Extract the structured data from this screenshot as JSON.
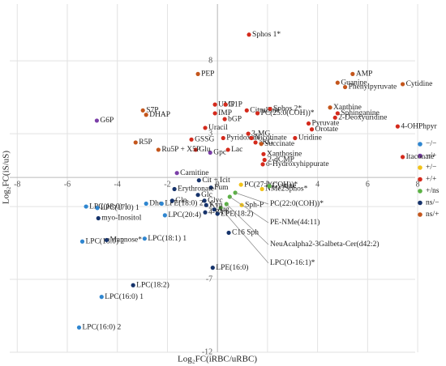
{
  "chart_data": {
    "type": "scatter",
    "xlabel": "Log₂FC(iRBC/uRBC)",
    "ylabel": "Log₂FC(iS/uS)",
    "xlim": [
      -8.3,
      7.9
    ],
    "ylim": [
      -12,
      11.9
    ],
    "xticks": [
      -8,
      -6,
      -4,
      -2,
      0,
      2,
      4,
      6,
      8
    ],
    "yticks": [
      8,
      3,
      -2,
      -7,
      -12
    ],
    "grid": true,
    "legend": "right",
    "series": [
      {
        "name": "−/−",
        "color": "#2f86d0",
        "labels": [
          "Dho",
          "LPE(18:0) 2",
          "LPC(20:4)",
          "LPC(18:0) 1",
          "LPC(17:0) 1",
          "LPC(18:0) 2",
          "LPC(18:1) 1",
          "LPC(16:0) 1",
          "LPC(16:0) 2"
        ],
        "x": [
          -2.85,
          -2.23,
          -2.1,
          -5.25,
          -4.8,
          -5.4,
          -2.91,
          -4.63,
          -5.53
        ],
        "values": [
          -1.8,
          -1.8,
          -2.6,
          -2.0,
          -2.1,
          -4.4,
          -4.2,
          -8.2,
          -10.3
        ]
      },
      {
        "name": "−/+",
        "color": "#7b3fa8",
        "labels": [
          "G6P",
          "Gpc",
          "Carnitine"
        ],
        "x": [
          -4.82,
          -0.29,
          -1.62
        ],
        "values": [
          3.9,
          1.7,
          0.3
        ]
      },
      {
        "name": "+/−",
        "color": "#f2c319",
        "labels": [
          "NMe2Sphos*",
          "Sph-P",
          "PC(27:0(COH))*"
        ],
        "x": [
          1.78,
          0.97,
          0.94
        ],
        "values": [
          -0.8,
          -1.9,
          -0.5
        ]
      },
      {
        "name": "+/+",
        "color": "#d42a1c",
        "labels": [
          "Sphos 1*",
          "UMP",
          "Citrulline",
          "G1P",
          "IMP",
          "bGP",
          "Sphos 2*",
          "PC(25:0(COH))*",
          "Sphinganine",
          "2-Deoxyuridine",
          "4-OHPhpyr",
          "Pyruvate",
          "Orotate",
          "Uracil",
          "3-MG",
          "Pyridoxine",
          "Nicotinate",
          "aKG",
          "Uridine",
          "Lac",
          "GSSG",
          "Glu",
          "Itaconate",
          "Xanthosine",
          "2-dCMP",
          "o-Hydroxyhippurate"
        ],
        "x": [
          1.26,
          -0.1,
          1.17,
          0.32,
          -0.1,
          0.29,
          2.1,
          1.6,
          4.8,
          4.7,
          7.2,
          3.64,
          3.77,
          -0.49,
          1.23,
          0.23,
          1.36,
          1.52,
          3.1,
          0.42,
          -1.04,
          -0.87,
          7.4,
          1.84,
          1.88,
          1.81
        ],
        "values": [
          9.8,
          5.0,
          4.6,
          5.0,
          4.4,
          4.0,
          4.7,
          4.4,
          4.4,
          4.1,
          3.5,
          3.7,
          3.3,
          3.4,
          3.0,
          2.7,
          2.7,
          2.4,
          2.7,
          1.9,
          2.6,
          1.9,
          1.4,
          1.6,
          1.2,
          0.9
        ]
      },
      {
        "name": "+/ns",
        "color": "#5bb244",
        "labels": [
          "Cystine",
          "PC(22:0(COH))*",
          "PE-NMe(44:11)",
          "NeuAcalpha2-3Galbeta-Cer(d42:2)",
          "LPC(O-16:1)*"
        ],
        "x": [
          2.07,
          0.71,
          0.49,
          0.36,
          0.13
        ],
        "values": [
          -0.6,
          -1.05,
          -1.33,
          -1.83,
          -2.1
        ]
      },
      {
        "name": "ns/−",
        "color": "#16336b",
        "labels": [
          "Cit + Icit",
          "Fum",
          "Erythronate",
          "Glc",
          "Glyc",
          "Kyn",
          "4-PA*",
          "Arg",
          "Gln",
          "LPE(18:2)",
          "C16 Sph",
          "LPE(16:0)",
          "myo-Inositol",
          "Mannose*",
          "LPC(18:2)"
        ],
        "x": [
          -0.74,
          -0.26,
          -1.72,
          -0.78,
          -0.52,
          -0.45,
          -0.49,
          -0.13,
          -1.81,
          0.0,
          0.45,
          -0.19,
          -4.76,
          -4.43,
          -3.37
        ],
        "values": [
          -0.2,
          -0.7,
          -0.8,
          -1.2,
          -1.6,
          -1.9,
          -2.4,
          -2.2,
          -1.6,
          -2.5,
          -3.8,
          -6.2,
          -2.8,
          -4.3,
          -7.4
        ]
      },
      {
        "name": "ns/+",
        "color": "#c4561c",
        "labels": [
          "AMP",
          "Guanine",
          "Cytidine",
          "Phenylpyruvate",
          "PEP",
          "Xanthine",
          "S7P",
          "DHAP",
          "Succinate",
          "R5P",
          "Ru5P + X5P"
        ],
        "x": [
          5.4,
          4.8,
          7.4,
          5.1,
          -0.78,
          4.5,
          -2.98,
          -2.85,
          1.75,
          -3.27,
          -2.36
        ],
        "values": [
          7.1,
          6.5,
          6.4,
          6.2,
          7.1,
          4.8,
          4.6,
          4.3,
          2.3,
          2.4,
          1.9
        ]
      }
    ]
  }
}
